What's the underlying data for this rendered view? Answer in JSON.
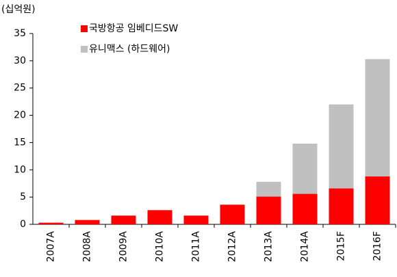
{
  "chart_data": {
    "type": "stacked_bar",
    "y_label": "(십억원)",
    "categories": [
      "2007A",
      "2008A",
      "2009A",
      "2010A",
      "2011A",
      "2012A",
      "2013A",
      "2014A",
      "2015F",
      "2016F"
    ],
    "series": [
      {
        "name": "국방항공 임베디드SW",
        "color": "#ff0000",
        "values": [
          0.3,
          0.8,
          1.6,
          2.6,
          1.6,
          3.6,
          5.1,
          5.6,
          6.6,
          8.8
        ]
      },
      {
        "name": "유니맥스 (하드웨어)",
        "color": "#c0c0c0",
        "values": [
          0,
          0,
          0,
          0,
          0,
          0,
          2.7,
          9.2,
          15.4,
          21.5
        ]
      }
    ],
    "ylim": [
      0,
      35
    ],
    "yticks": [
      0,
      5,
      10,
      15,
      20,
      25,
      30,
      35
    ],
    "grid": false,
    "legend": "top-left"
  }
}
